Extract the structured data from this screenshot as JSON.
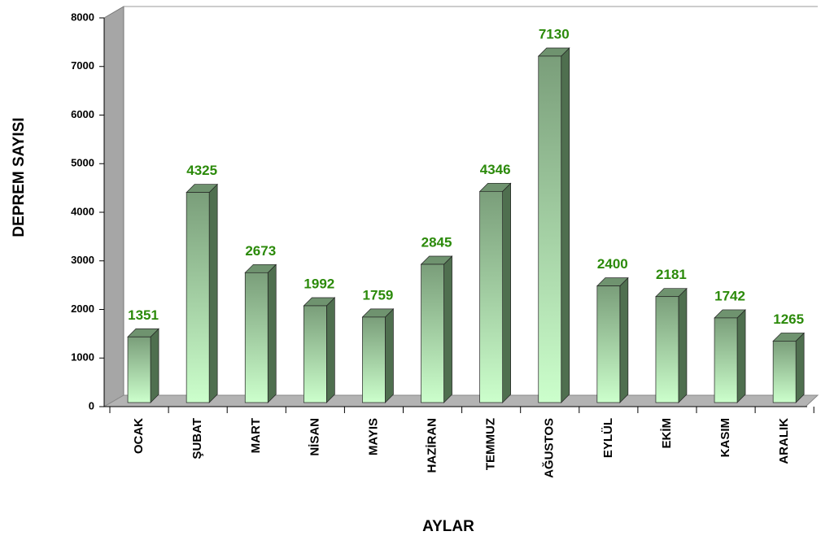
{
  "chart_data": {
    "type": "bar",
    "ylabel": "DEPREM  SAYISI",
    "xlabel": "AYLAR",
    "categories": [
      "OCAK",
      "ŞUBAT",
      "MART",
      "NİSAN",
      "MAYIS",
      "HAZİRAN",
      "TEMMUZ",
      "AĞUSTOS",
      "EYLÜL",
      "EKİM",
      "KASIM",
      "ARALIK"
    ],
    "values": [
      1351,
      4325,
      2673,
      1992,
      1759,
      2845,
      4346,
      7130,
      2400,
      2181,
      1742,
      1265
    ],
    "color": "#8fb48f",
    "ylim": [
      0,
      8000
    ],
    "yticks": [
      0,
      1000,
      2000,
      3000,
      4000,
      5000,
      6000,
      7000,
      8000
    ]
  }
}
